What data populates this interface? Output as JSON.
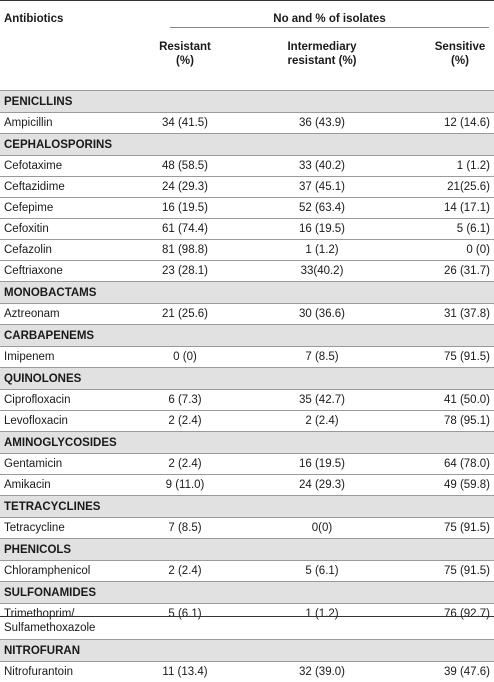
{
  "header": {
    "col0": "Antibiotics",
    "group": "No and % of isolates",
    "col1_line1": "Resistant",
    "col1_line2": "(%)",
    "col2_line1": "Intermediary",
    "col2_line2": "resistant (%)",
    "col3_line1": "Sensitive",
    "col3_line2": "(%)"
  },
  "groups": [
    {
      "name": "PENICLLINS",
      "rows": [
        [
          "Ampicillin",
          "34 (41.5)",
          "36 (43.9)",
          "12 (14.6)"
        ]
      ]
    },
    {
      "name": "CEPHALOSPORINS",
      "rows": [
        [
          "Cefotaxime",
          "48 (58.5)",
          "33 (40.2)",
          "1 (1.2)"
        ],
        [
          "Ceftazidime",
          "24 (29.3)",
          "37 (45.1)",
          "21(25.6)"
        ],
        [
          "Cefepime",
          "16 (19.5)",
          "52 (63.4)",
          "14 (17.1)"
        ],
        [
          "Cefoxitin",
          "61 (74.4)",
          "16 (19.5)",
          "5 (6.1)"
        ],
        [
          "Cefazolin",
          "81 (98.8)",
          "1 (1.2)",
          "0 (0)"
        ],
        [
          "Ceftriaxone",
          "23 (28.1)",
          "33(40.2)",
          "26 (31.7)"
        ]
      ]
    },
    {
      "name": "MONOBACTAMS",
      "rows": [
        [
          "Aztreonam",
          "21 (25.6)",
          "30 (36.6)",
          "31 (37.8)"
        ]
      ]
    },
    {
      "name": "CARBAPENEMS",
      "rows": [
        [
          "Imipenem",
          "0 (0)",
          "7 (8.5)",
          "75 (91.5)"
        ]
      ]
    },
    {
      "name": "QUINOLONES",
      "rows": [
        [
          "Ciprofloxacin",
          "6 (7.3)",
          "35 (42.7)",
          "41 (50.0)"
        ],
        [
          "Levofloxacin",
          "2 (2.4)",
          "2 (2.4)",
          "78 (95.1)"
        ]
      ]
    },
    {
      "name": "AMINOGLYCOSIDES",
      "rows": [
        [
          "Gentamicin",
          "2 (2.4)",
          "16 (19.5)",
          "64 (78.0)"
        ],
        [
          "Amikacin",
          "9 (11.0)",
          "24 (29.3)",
          "49 (59.8)"
        ]
      ]
    },
    {
      "name": "TETRACYCLINES",
      "rows": [
        [
          "Tetracycline",
          "7 (8.5)",
          "0(0)",
          "75 (91.5)"
        ]
      ]
    },
    {
      "name": "PHENICOLS",
      "rows": [
        [
          "Chloramphenicol",
          "2 (2.4)",
          "5 (6.1)",
          "75 (91.5)"
        ]
      ]
    },
    {
      "name": "SULFONAMIDES",
      "rows": [
        [
          "Trimethoprim/\nSulfamethoxazole",
          "5 (6.1)",
          "1 (1.2)",
          "76 (92.7)"
        ]
      ]
    },
    {
      "name": "NITROFURAN",
      "rows": [
        [
          "Nitrofurantoin",
          "11 (13.4)",
          "32 (39.0)",
          "39 (47.6)"
        ]
      ]
    }
  ]
}
